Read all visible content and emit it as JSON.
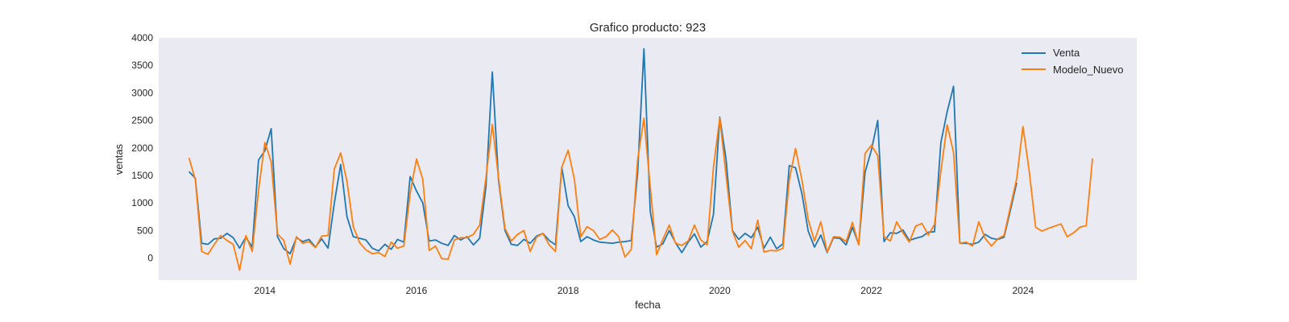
{
  "chart_data": {
    "type": "line",
    "title": "Grafico producto: 923",
    "xlabel": "fecha",
    "ylabel": "ventas",
    "ylim": [
      -400,
      4000
    ],
    "yticks": [
      0,
      500,
      1000,
      1500,
      2000,
      2500,
      3000,
      3500,
      4000
    ],
    "xlim": [
      2012.6,
      2025.5
    ],
    "xticks": [
      "2014",
      "2016",
      "2018",
      "2020",
      "2022",
      "2024"
    ],
    "grid": false,
    "legend_position": "top-right",
    "series": [
      {
        "name": "Venta",
        "color": "#1f77b4",
        "start": "2013-01",
        "values": [
          1570,
          1450,
          270,
          250,
          350,
          360,
          450,
          370,
          180,
          380,
          200,
          1780,
          1950,
          2350,
          390,
          170,
          80,
          370,
          300,
          340,
          200,
          350,
          180,
          1000,
          1700,
          750,
          390,
          360,
          330,
          180,
          130,
          250,
          160,
          340,
          290,
          1480,
          1220,
          1000,
          310,
          330,
          270,
          230,
          410,
          330,
          390,
          240,
          360,
          1300,
          3380,
          1400,
          500,
          250,
          230,
          340,
          270,
          400,
          450,
          320,
          240,
          1650,
          950,
          750,
          300,
          390,
          330,
          290,
          280,
          270,
          290,
          300,
          320,
          1550,
          3800,
          850,
          200,
          260,
          500,
          280,
          100,
          290,
          440,
          200,
          300,
          790,
          2560,
          1800,
          500,
          340,
          450,
          370,
          560,
          180,
          380,
          170,
          260,
          1680,
          1640,
          1170,
          490,
          200,
          420,
          100,
          370,
          360,
          240,
          560,
          250,
          1560,
          1960,
          2500,
          300,
          460,
          450,
          510,
          320,
          360,
          390,
          470,
          480,
          2100,
          2660,
          3120,
          270,
          270,
          250,
          290,
          430,
          360,
          340,
          380,
          870,
          1370
        ]
      },
      {
        "name": "Modelo_Nuevo",
        "color": "#ff7f0e",
        "start": "2013-01",
        "values": [
          1820,
          1420,
          120,
          70,
          250,
          410,
          320,
          250,
          -220,
          410,
          120,
          1230,
          2100,
          1750,
          440,
          320,
          -110,
          390,
          270,
          300,
          190,
          400,
          410,
          1620,
          1910,
          1390,
          570,
          280,
          150,
          80,
          100,
          30,
          290,
          180,
          220,
          1180,
          1800,
          1430,
          140,
          220,
          -10,
          -20,
          330,
          370,
          370,
          430,
          600,
          1460,
          2430,
          1450,
          540,
          310,
          430,
          500,
          120,
          380,
          450,
          240,
          120,
          1650,
          1960,
          1430,
          390,
          570,
          500,
          340,
          390,
          510,
          390,
          20,
          160,
          1790,
          2540,
          1300,
          60,
          340,
          600,
          270,
          230,
          310,
          600,
          330,
          240,
          1650,
          2540,
          1510,
          490,
          200,
          320,
          170,
          690,
          110,
          140,
          130,
          180,
          1420,
          1990,
          1420,
          700,
          310,
          660,
          110,
          390,
          380,
          300,
          650,
          240,
          1900,
          2050,
          1860,
          390,
          310,
          660,
          460,
          290,
          580,
          630,
          420,
          610,
          1580,
          2420,
          1920,
          270,
          290,
          220,
          660,
          360,
          220,
          350,
          410,
          930,
          1440,
          2390,
          1560,
          560,
          490,
          540,
          580,
          620,
          390,
          460,
          560,
          590,
          1810
        ]
      }
    ]
  }
}
